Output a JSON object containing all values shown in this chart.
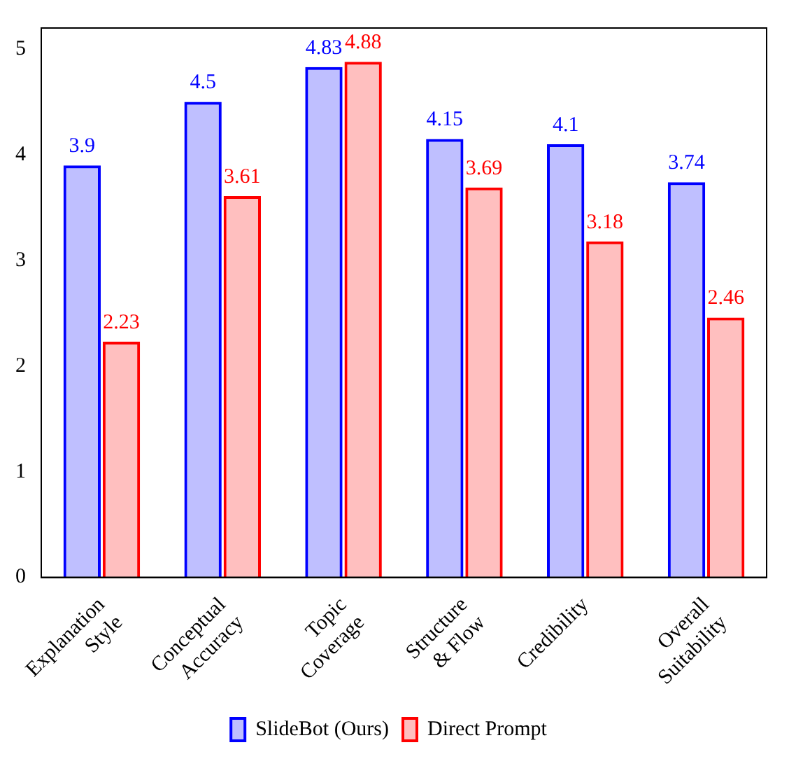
{
  "chart_data": {
    "type": "bar",
    "categories": [
      "Explanation\nStyle",
      "Conceptual\nAccuracy",
      "Topic\nCoverage",
      "Structure\n& Flow",
      "Credibility",
      "Overall\nSuitability"
    ],
    "series": [
      {
        "name": "SlideBot (Ours)",
        "color": "#0000ff",
        "values": [
          3.9,
          4.5,
          4.83,
          4.15,
          4.1,
          3.74
        ]
      },
      {
        "name": "Direct Prompt",
        "color": "#ff0000",
        "values": [
          2.23,
          3.61,
          4.88,
          3.69,
          3.18,
          2.46
        ]
      }
    ],
    "ylim": [
      0,
      5.2
    ],
    "yticks": [
      0,
      1,
      2,
      3,
      4,
      5
    ],
    "grid": false,
    "legend": "bottom",
    "data_labels": true
  }
}
